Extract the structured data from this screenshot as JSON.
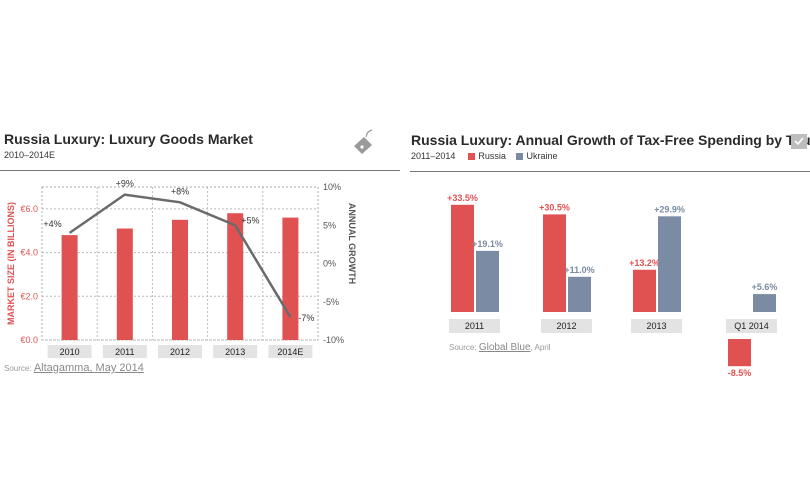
{
  "left": {
    "title": "Russia Luxury: Luxury Goods Market",
    "subtitle": "2010–2014E",
    "source_prefix": "Source:",
    "source_link": "Altagamma, May 2014"
  },
  "right": {
    "title": "Russia Luxury: Annual Growth of Tax-Free Spending by Tourists",
    "subtitle": "2011–2014",
    "source_prefix": "Source:",
    "source_link": "Global Blue",
    "source_suffix": ", April"
  },
  "chart_data": [
    {
      "type": "bar",
      "categories": [
        "2010",
        "2011",
        "2012",
        "2013",
        "2014E"
      ],
      "series": [
        {
          "name": "",
          "values": [
            4.8,
            5.1,
            5.5,
            5.8,
            5.6
          ],
          "color": "#e05252"
        },
        {
          "name": "",
          "type": "line",
          "values": [
            4,
            9,
            8,
            5,
            -7
          ],
          "labels": [
            "+4%",
            "+9%",
            "+8%",
            "+5%",
            "-7%"
          ],
          "color": "#6b6b6b"
        }
      ],
      "ylabel": "MARKET SIZE (IN BILLIONS)",
      "y2label": "ANNUAL GROWTH",
      "ylim": [
        0,
        7.0
      ],
      "yticks": [
        "€0.0",
        "€2.0",
        "€4.0",
        "€6.0"
      ],
      "y2lim": [
        -10,
        10
      ],
      "y2ticks": [
        "-10%",
        "-5%",
        "0%",
        "5%",
        "10%"
      ],
      "grid": true
    },
    {
      "type": "bar",
      "categories": [
        "2011",
        "2012",
        "2013",
        "Q1 2014"
      ],
      "series": [
        {
          "name": "Russia",
          "values": [
            33.5,
            30.5,
            13.2,
            -8.5
          ],
          "labels": [
            "+33.5%",
            "+30.5%",
            "+13.2%",
            "-8.5%"
          ],
          "color": "#e05252"
        },
        {
          "name": "Ukraine",
          "values": [
            19.1,
            11.0,
            29.9,
            5.6
          ],
          "labels": [
            "+19.1%",
            "+11.0%",
            "+29.9%",
            "+5.6%"
          ],
          "color": "#7a8ba3"
        }
      ],
      "grid": false
    }
  ]
}
